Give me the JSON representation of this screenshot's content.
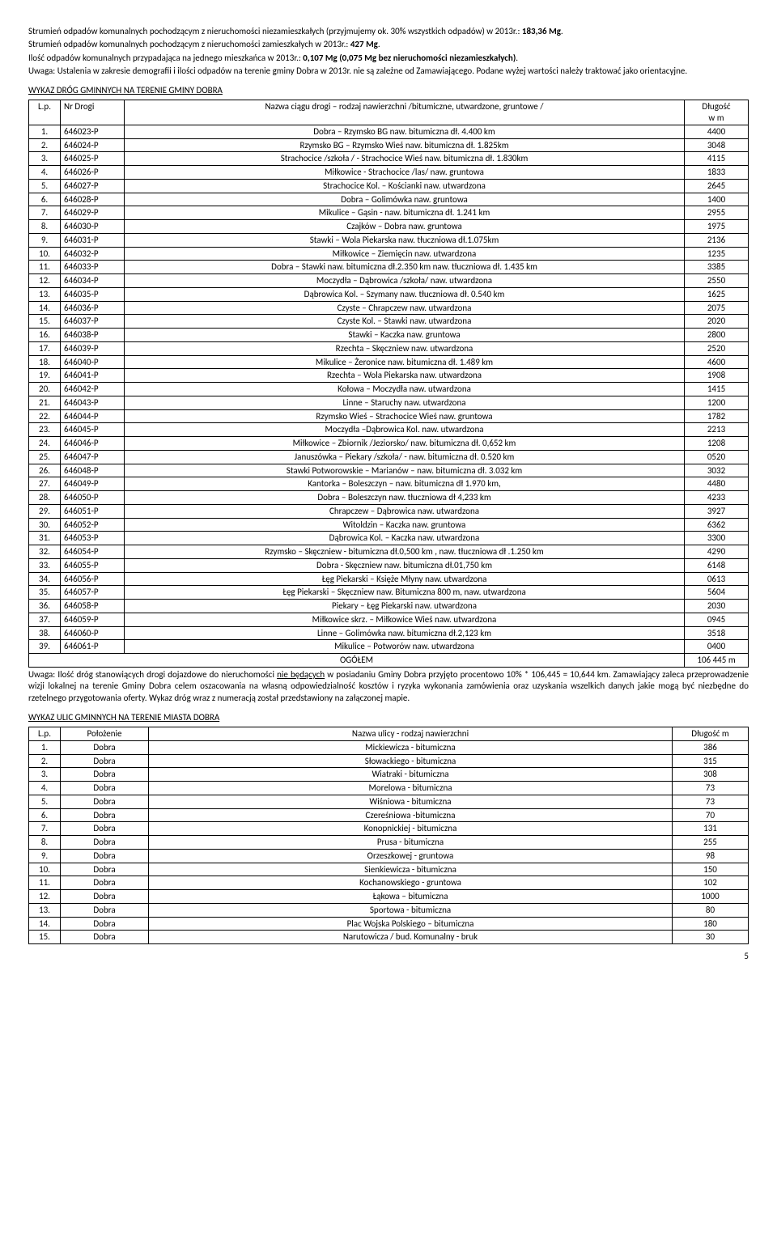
{
  "intro": {
    "p1a": "Strumień odpadów komunalnych pochodzącym z nieruchomości niezamieszkałych (przyjmujemy ok. 30% wszystkich odpadów) w 2013r.: ",
    "p1b": "183,36 Mg",
    "p1c": ".",
    "p2a": "Strumień odpadów komunalnych pochodzącym z nieruchomości zamieszkałych w 2013r.: ",
    "p2b": "427 Mg",
    "p2c": ".",
    "p3a": "Ilość odpadów komunalnych przypadająca na jednego mieszkańca w 2013r.: ",
    "p3b": "0,107 Mg (0,075 Mg bez nieruchomości niezamieszkałych)",
    "p3c": ".",
    "p4": "Uwaga: Ustalenia w zakresie demografii i ilości odpadów na terenie gminy Dobra w 2013r. nie są zależne od Zamawiającego. Podane wyżej wartości należy traktować jako orientacyjne."
  },
  "roads": {
    "title": "WYKAZ DRÓG GMINNYCH NA TERENIE GMINY DOBRA",
    "headers": {
      "lp": "L.p.",
      "nr": "Nr Drogi",
      "desc": "Nazwa ciągu drogi – rodzaj nawierzchni /bitumiczne, utwardzone, gruntowe /",
      "len1": "Długość",
      "len2": "w m"
    },
    "rows": [
      {
        "lp": "1.",
        "nr": "646023-P",
        "desc": "Dobra – Rzymsko BG                               naw. bitumiczna  dł. 4.400 km",
        "len": "4400"
      },
      {
        "lp": "2.",
        "nr": "646024-P",
        "desc": "Rzymsko BG – Rzymsko Wieś                    naw. bitumiczna  dł.  1.825km",
        "len": "3048"
      },
      {
        "lp": "3.",
        "nr": "646025-P",
        "desc": "Strachocice /szkoła / - Strachocice Wieś   naw. bitumiczna  dł. 1.830km",
        "len": "4115"
      },
      {
        "lp": "4.",
        "nr": "646026-P",
        "desc": "Miłkowice - Strachocice /las/                  naw. gruntowa",
        "len": "1833"
      },
      {
        "lp": "5.",
        "nr": "646027-P",
        "desc": "Strachocice Kol. – Kościanki                         naw. utwardzona",
        "len": "2645"
      },
      {
        "lp": "6.",
        "nr": "646028-P",
        "desc": "Dobra – Golimówka                             naw. gruntowa",
        "len": "1400"
      },
      {
        "lp": "7.",
        "nr": "646029-P",
        "desc": "Mikulice – Gąsin -                                 naw. bitumiczna dł. 1.241 km",
        "len": "2955"
      },
      {
        "lp": "8.",
        "nr": "646030-P",
        "desc": "Czajków – Dobra                                naw. gruntowa",
        "len": "1975"
      },
      {
        "lp": "9.",
        "nr": "646031-P",
        "desc": "Stawki – Wola Piekarska                       naw. tłuczniowa dł.1.075km",
        "len": "2136"
      },
      {
        "lp": "10.",
        "nr": "646032-P",
        "desc": "Miłkowice – Ziemięcin                                  naw. utwardzona",
        "len": "1235"
      },
      {
        "lp": "11.",
        "nr": "646033-P",
        "desc": "Dobra – Stawki          naw. bitumiczna  dł.2.350 km naw. tłuczniowa  dł. 1.435 km",
        "len": "3385"
      },
      {
        "lp": "12.",
        "nr": "646034-P",
        "desc": "Moczydła – Dąbrowica /szkoła/               naw. utwardzona",
        "len": "2550"
      },
      {
        "lp": "13.",
        "nr": "646035-P",
        "desc": "Dąbrowica Kol. – Szymany                     naw. tłuczniowa  dł. 0.540 km",
        "len": "1625"
      },
      {
        "lp": "14.",
        "nr": "646036-P",
        "desc": "Czyste – Chrapczew                              naw. utwardzona",
        "len": "2075"
      },
      {
        "lp": "15.",
        "nr": "646037-P",
        "desc": "Czyste Kol. – Stawki                               naw. utwardzona",
        "len": "2020"
      },
      {
        "lp": "16.",
        "nr": "646038-P",
        "desc": "Stawki – Kaczka                                   naw. gruntowa",
        "len": "2800"
      },
      {
        "lp": "17.",
        "nr": "646039-P",
        "desc": "Rzechta – Skęczniew                                          naw. utwardzona",
        "len": "2520"
      },
      {
        "lp": "18.",
        "nr": "646040-P",
        "desc": "Mikulice – Żeronice                               naw. bitumiczna  dł. 1.489 km",
        "len": "4600"
      },
      {
        "lp": "19.",
        "nr": "646041-P",
        "desc": "Rzechta – Wola Piekarska                                 naw. utwardzona",
        "len": "1908"
      },
      {
        "lp": "20.",
        "nr": "646042-P",
        "desc": "Kołowa – Moczydła                                   naw. utwardzona",
        "len": "1415"
      },
      {
        "lp": "21.",
        "nr": "646043-P",
        "desc": "Linne – Staruchy                                       naw. utwardzona",
        "len": "1200"
      },
      {
        "lp": "22.",
        "nr": "646044-P",
        "desc": "Rzymsko Wieś – Strachocice Wieś       naw. gruntowa",
        "len": "1782"
      },
      {
        "lp": "23.",
        "nr": "646045-P",
        "desc": "Moczydła –Dąbrowica Kol.                     naw. utwardzona",
        "len": "2213"
      },
      {
        "lp": "24.",
        "nr": "646046-P",
        "desc": "Miłkowice – Zbiornik /Jeziorsko/            naw. bitumiczna  dł. 0,652 km",
        "len": "1208"
      },
      {
        "lp": "25.",
        "nr": "646047-P",
        "desc": "Januszówka – Piekary /szkoła/ -              naw. bitumiczna  dł. 0.520 km",
        "len": "0520"
      },
      {
        "lp": "26.",
        "nr": "646048-P",
        "desc": "Stawki Potworowskie – Marianów –        naw. bitumiczna  dł. 3.032 km",
        "len": "3032"
      },
      {
        "lp": "27.",
        "nr": "646049-P",
        "desc": "Kantorka – Boleszczyn –                         naw. bitumiczna  dł 1.970 km,",
        "len": "4480"
      },
      {
        "lp": "28.",
        "nr": "646050-P",
        "desc": "Dobra – Boleszczyn                               naw. tłuczniowa  dł 4,233 km",
        "len": "4233"
      },
      {
        "lp": "29.",
        "nr": "646051-P",
        "desc": "Chrapczew – Dąbrowica                          naw. utwardzona",
        "len": "3927"
      },
      {
        "lp": "30.",
        "nr": "646052-P",
        "desc": "Witoldzin – Kaczka                                     naw. gruntowa",
        "len": "6362"
      },
      {
        "lp": "31.",
        "nr": "646053-P",
        "desc": "Dąbrowica Kol. – Kaczka                              naw. utwardzona",
        "len": "3300"
      },
      {
        "lp": "32.",
        "nr": "646054-P",
        "desc": "Rzymsko – Skęczniew -   bitumiczna dł.0,500 km , naw. tłuczniowa dł .1.250 km",
        "len": "4290"
      },
      {
        "lp": "33.",
        "nr": "646055-P",
        "desc": "Dobra  - Skęczniew                                naw. bitumiczna  dł.01,750 km",
        "len": "6148"
      },
      {
        "lp": "34.",
        "nr": "646056-P",
        "desc": "Łęg Piekarski – Księże Młyny                              naw. utwardzona",
        "len": "0613"
      },
      {
        "lp": "35.",
        "nr": "646057-P",
        "desc": "Łęg Piekarski – Skęczniew                     naw. Bitumiczna 800 m, naw.  utwardzona",
        "len": "5604"
      },
      {
        "lp": "36.",
        "nr": "646058-P",
        "desc": "Piekary – Łęg Piekarski                             naw. utwardzona",
        "len": "2030"
      },
      {
        "lp": "37.",
        "nr": "646059-P",
        "desc": "Miłkowice skrz. – Miłkowice Wieś           naw. utwardzona",
        "len": "0945"
      },
      {
        "lp": "38.",
        "nr": "646060-P",
        "desc": "Linne – Golimówka                              naw. bitumiczna  dł.2,123 km",
        "len": "3518"
      },
      {
        "lp": "39.",
        "nr": "646061-P",
        "desc": "Mikulice – Potworów                             naw. utwardzona",
        "len": "0400"
      }
    ],
    "total_label": "OGÓŁEM",
    "total_value": "106 445 m"
  },
  "note": {
    "a": "Uwaga: Ilość dróg stanowiących drogi dojazdowe do nieruchomości ",
    "u": "nie będących",
    "b": " w posiadaniu Gminy Dobra przyjęto procentowo 10% * 106,445 = 10,644 km. Zamawiający zaleca przeprowadzenie wizji lokalnej na terenie Gminy Dobra celem oszacowania na własną odpowiedzialność kosztów i ryzyka wykonania zamówienia oraz uzyskania wszelkich danych jakie mogą być niezbędne do rzetelnego przygotowania oferty. Wykaz dróg wraz z numeracją został przedstawiony na załączonej mapie."
  },
  "streets": {
    "title": "WYKAZ ULIC GMINNYCH NA TERENIE MIASTA DOBRA",
    "headers": {
      "lp": "L.p.",
      "pol": "Położenie",
      "naz": "Nazwa ulicy - rodzaj nawierzchni",
      "dl": "Długość  m"
    },
    "rows": [
      {
        "lp": "1.",
        "pol": "Dobra",
        "naz": "Mickiewicza - bitumiczna",
        "dl": "386"
      },
      {
        "lp": "2.",
        "pol": "Dobra",
        "naz": "Słowackiego - bitumiczna",
        "dl": "315"
      },
      {
        "lp": "3.",
        "pol": "Dobra",
        "naz": "Wiatraki - bitumiczna",
        "dl": "308"
      },
      {
        "lp": "4.",
        "pol": "Dobra",
        "naz": "Morelowa - bitumiczna",
        "dl": "73"
      },
      {
        "lp": "5.",
        "pol": "Dobra",
        "naz": "Wiśniowa - bitumiczna",
        "dl": "73"
      },
      {
        "lp": "6.",
        "pol": "Dobra",
        "naz": "Czereśniowa -bitumiczna",
        "dl": "70"
      },
      {
        "lp": "7.",
        "pol": "Dobra",
        "naz": "Konopnickiej - bitumiczna",
        "dl": "131"
      },
      {
        "lp": "8.",
        "pol": "Dobra",
        "naz": "Prusa - bitumiczna",
        "dl": "255"
      },
      {
        "lp": "9.",
        "pol": "Dobra",
        "naz": "Orzeszkowej - gruntowa",
        "dl": "98"
      },
      {
        "lp": "10.",
        "pol": "Dobra",
        "naz": "Sienkiewicza - bitumiczna",
        "dl": "150"
      },
      {
        "lp": "11.",
        "pol": "Dobra",
        "naz": "Kochanowskiego - gruntowa",
        "dl": "102"
      },
      {
        "lp": "12.",
        "pol": "Dobra",
        "naz": "Łąkowa – bitumiczna",
        "dl": "1000"
      },
      {
        "lp": "13.",
        "pol": "Dobra",
        "naz": "Sportowa - bitumiczna",
        "dl": "80"
      },
      {
        "lp": "14.",
        "pol": "Dobra",
        "naz": "Plac Wojska Polskiego – bitumiczna",
        "dl": "180"
      },
      {
        "lp": "15.",
        "pol": "Dobra",
        "naz": "Narutowicza / bud. Komunalny - bruk",
        "dl": "30"
      }
    ]
  },
  "page": "5"
}
